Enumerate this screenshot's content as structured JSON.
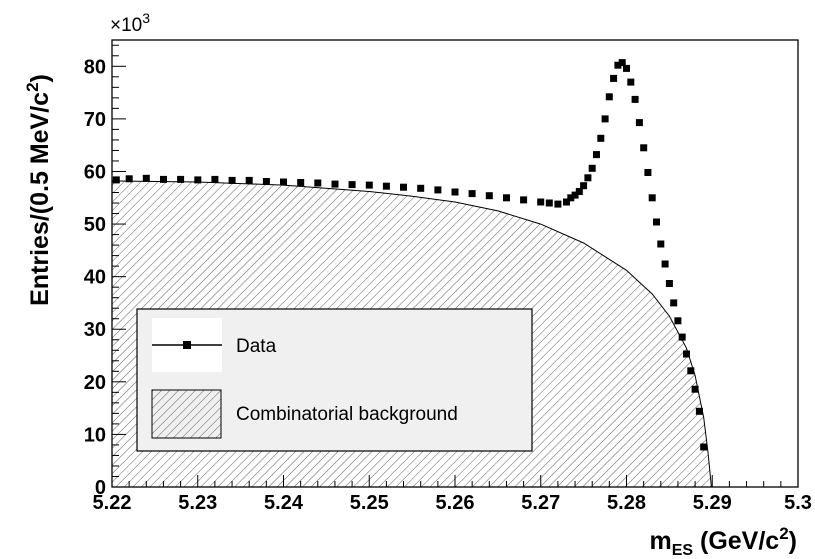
{
  "chart_data": {
    "type": "scatter",
    "xlabel": "m",
    "xlabel_sub": "ES",
    "xlabel_unit_prefix": " (GeV/c",
    "xlabel_unit_sup": "2",
    "xlabel_unit_suffix": ")",
    "ylabel_prefix": "Entries/(0.5 MeV/c",
    "ylabel_sup": "2",
    "ylabel_suffix": ")",
    "y_multiplier_base": "×10",
    "y_multiplier_exp": "3",
    "xlim": [
      5.22,
      5.3
    ],
    "ylim": [
      0,
      85
    ],
    "x_ticks": [
      "5.22",
      "5.23",
      "5.24",
      "5.25",
      "5.26",
      "5.27",
      "5.28",
      "5.29",
      "5.3"
    ],
    "y_ticks": [
      "0",
      "10",
      "20",
      "30",
      "40",
      "50",
      "60",
      "70",
      "80"
    ],
    "legend": {
      "position": "lower-left",
      "entries": [
        {
          "label": "Data",
          "style": "marker-line"
        },
        {
          "label": "Combinatorial background",
          "style": "hatched-fill"
        }
      ]
    },
    "series": [
      {
        "name": "Data",
        "marker": "square",
        "points": [
          [
            5.2205,
            58.4
          ],
          [
            5.222,
            58.6
          ],
          [
            5.224,
            58.7
          ],
          [
            5.226,
            58.5
          ],
          [
            5.228,
            58.5
          ],
          [
            5.23,
            58.4
          ],
          [
            5.232,
            58.5
          ],
          [
            5.234,
            58.3
          ],
          [
            5.236,
            58.3
          ],
          [
            5.238,
            58.1
          ],
          [
            5.24,
            58.0
          ],
          [
            5.242,
            57.9
          ],
          [
            5.244,
            57.8
          ],
          [
            5.246,
            57.6
          ],
          [
            5.248,
            57.5
          ],
          [
            5.25,
            57.4
          ],
          [
            5.252,
            57.2
          ],
          [
            5.254,
            57.0
          ],
          [
            5.256,
            56.8
          ],
          [
            5.258,
            56.5
          ],
          [
            5.26,
            56.1
          ],
          [
            5.262,
            55.8
          ],
          [
            5.264,
            55.4
          ],
          [
            5.266,
            55.0
          ],
          [
            5.268,
            54.6
          ],
          [
            5.27,
            54.2
          ],
          [
            5.271,
            54.0
          ],
          [
            5.272,
            53.8
          ],
          [
            5.273,
            54.2
          ],
          [
            5.2735,
            55.0
          ],
          [
            5.274,
            55.5
          ],
          [
            5.2745,
            56.2
          ],
          [
            5.275,
            57.3
          ],
          [
            5.2755,
            58.8
          ],
          [
            5.276,
            60.6
          ],
          [
            5.2765,
            63.2
          ],
          [
            5.277,
            66.3
          ],
          [
            5.2775,
            70.0
          ],
          [
            5.278,
            74.2
          ],
          [
            5.2785,
            77.7
          ],
          [
            5.279,
            80.2
          ],
          [
            5.2795,
            80.7
          ],
          [
            5.28,
            79.6
          ],
          [
            5.2805,
            77.0
          ],
          [
            5.281,
            73.7
          ],
          [
            5.2815,
            69.3
          ],
          [
            5.282,
            64.5
          ],
          [
            5.2825,
            59.8
          ],
          [
            5.283,
            55.0
          ],
          [
            5.2835,
            50.4
          ],
          [
            5.284,
            46.2
          ],
          [
            5.2845,
            42.4
          ],
          [
            5.285,
            38.7
          ],
          [
            5.2855,
            35.0
          ],
          [
            5.286,
            31.6
          ],
          [
            5.2865,
            28.5
          ],
          [
            5.287,
            25.3
          ],
          [
            5.2875,
            22.1
          ],
          [
            5.288,
            18.6
          ],
          [
            5.2885,
            14.4
          ],
          [
            5.289,
            7.6
          ]
        ]
      },
      {
        "name": "Combinatorial background",
        "style": "hatched-histogram",
        "points": [
          [
            5.22,
            58.2
          ],
          [
            5.23,
            58.0
          ],
          [
            5.24,
            57.4
          ],
          [
            5.25,
            56.2
          ],
          [
            5.255,
            55.3
          ],
          [
            5.26,
            54.2
          ],
          [
            5.265,
            52.5
          ],
          [
            5.27,
            50.0
          ],
          [
            5.275,
            46.4
          ],
          [
            5.28,
            41.2
          ],
          [
            5.283,
            36.7
          ],
          [
            5.285,
            32.5
          ],
          [
            5.287,
            26.4
          ],
          [
            5.288,
            21.2
          ],
          [
            5.289,
            13.2
          ],
          [
            5.2895,
            6.6
          ],
          [
            5.2899,
            0.0
          ]
        ]
      }
    ]
  }
}
